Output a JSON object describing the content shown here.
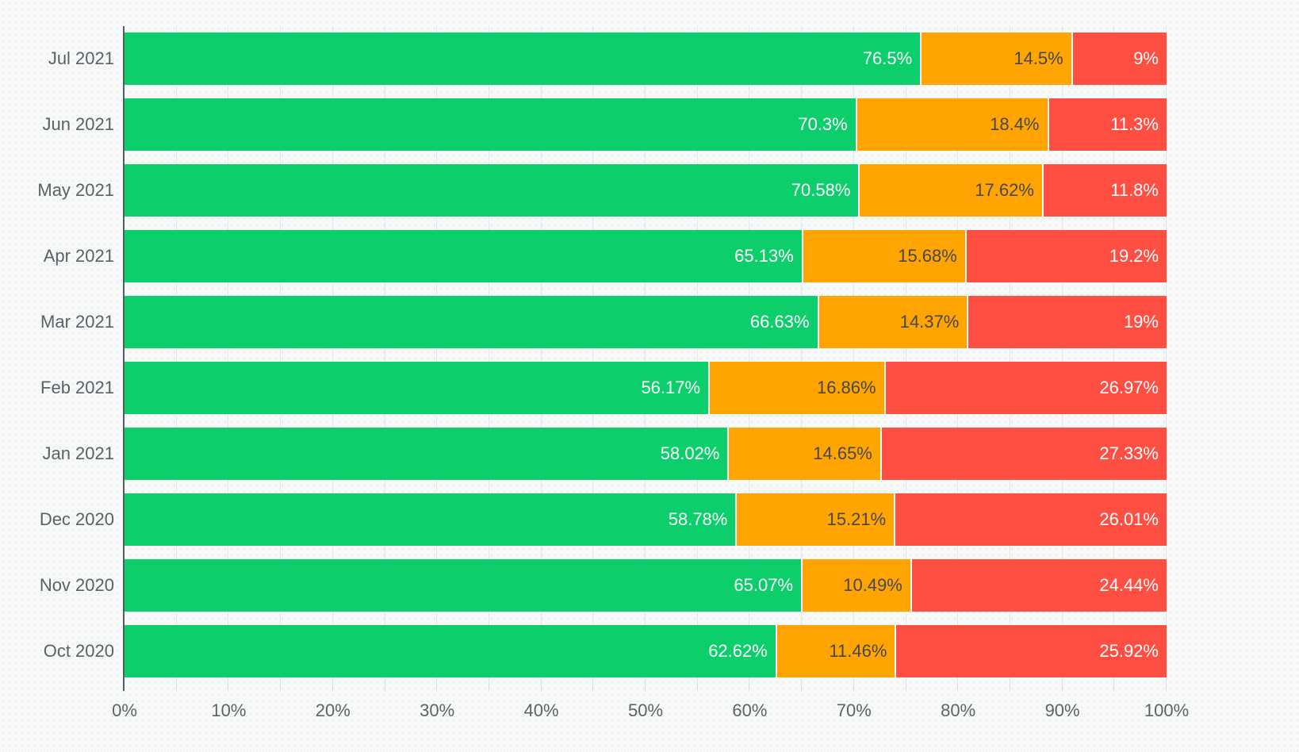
{
  "chart_data": {
    "type": "bar",
    "variant": "horizontal-stacked-percentage",
    "title": "",
    "xlabel": "",
    "ylabel": "",
    "legend": "none",
    "grid": true,
    "categories": [
      "Jul 2021",
      "Jun 2021",
      "May 2021",
      "Apr 2021",
      "Mar 2021",
      "Feb 2021",
      "Jan 2021",
      "Dec 2020",
      "Nov 2020",
      "Oct 2020"
    ],
    "series": [
      {
        "name": "green",
        "color": "#0cce6b",
        "label_color": "#ffffff",
        "values": [
          76.5,
          70.3,
          70.58,
          65.13,
          66.63,
          56.17,
          58.02,
          58.78,
          65.07,
          62.62
        ],
        "labels": [
          "76.5%",
          "70.3%",
          "70.58%",
          "65.13%",
          "66.63%",
          "56.17%",
          "58.02%",
          "58.78%",
          "65.07%",
          "62.62%"
        ]
      },
      {
        "name": "orange",
        "color": "#ffa400",
        "label_color": "#45484d",
        "values": [
          14.5,
          18.4,
          17.62,
          15.68,
          14.37,
          16.86,
          14.65,
          15.21,
          10.49,
          11.46
        ],
        "labels": [
          "14.5%",
          "18.4%",
          "17.62%",
          "15.68%",
          "14.37%",
          "16.86%",
          "14.65%",
          "15.21%",
          "10.49%",
          "11.46%"
        ]
      },
      {
        "name": "red",
        "color": "#ff4e42",
        "label_color": "#ffffff",
        "values": [
          9,
          11.3,
          11.8,
          19.2,
          19,
          26.97,
          27.33,
          26.01,
          24.44,
          25.92
        ],
        "labels": [
          "9%",
          "11.3%",
          "11.8%",
          "19.2%",
          "19%",
          "26.97%",
          "27.33%",
          "26.01%",
          "24.44%",
          "25.92%"
        ]
      }
    ],
    "x_axis": {
      "range": [
        0,
        100
      ],
      "tick_labels": [
        "0%",
        "10%",
        "20%",
        "30%",
        "40%",
        "50%",
        "60%",
        "70%",
        "80%",
        "90%",
        "100%"
      ],
      "minor_step_percent": 5,
      "major_step_percent": 10
    },
    "colors": {
      "background": "#f7f8f8",
      "axis_line": "#565a63",
      "gridline": "#e5e6e8",
      "tick": "#d7d8da",
      "axis_label": "#5f6368",
      "category_label": "#5d6167",
      "segment_divider": "#ffffff"
    }
  }
}
